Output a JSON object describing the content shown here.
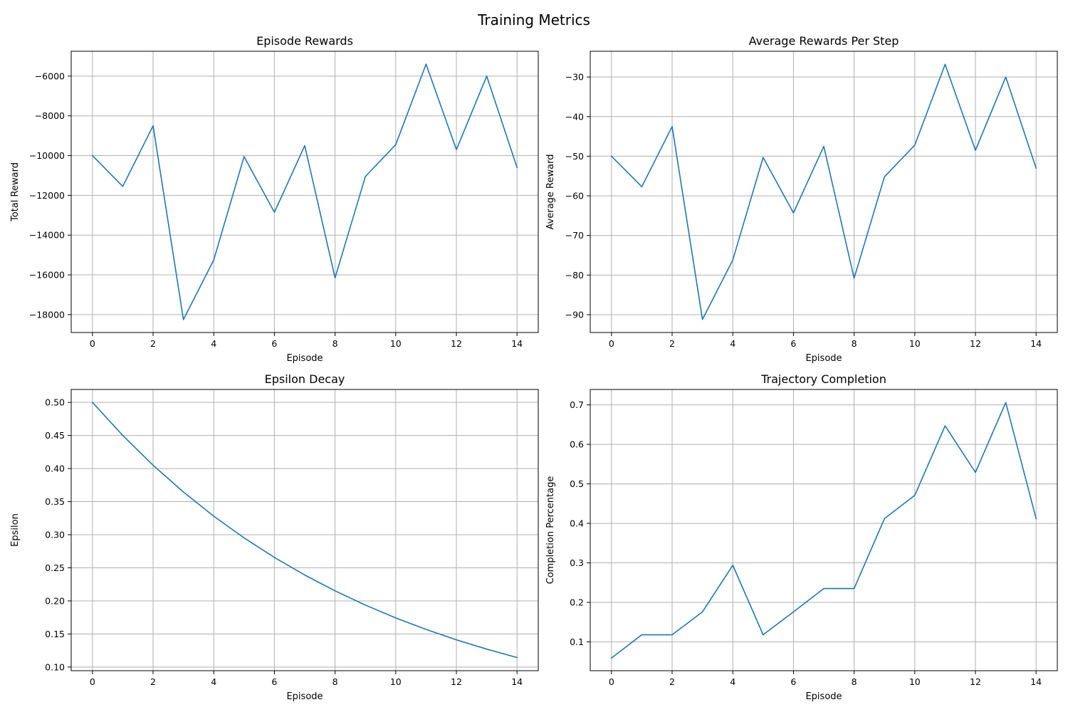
{
  "figure": {
    "title": "Training Metrics"
  },
  "colors": {
    "line": "#1f77b4",
    "grid": "#b0b0b0",
    "axis": "#000000"
  },
  "chart_data": [
    {
      "type": "line",
      "title": "Episode Rewards",
      "xlabel": "Episode",
      "ylabel": "Total Reward",
      "xlim": [
        -0.7,
        14.7
      ],
      "ylim": [
        -18900,
        -4750
      ],
      "xticks": [
        0,
        2,
        4,
        6,
        8,
        10,
        12,
        14
      ],
      "yticks": [
        -18000,
        -16000,
        -14000,
        -12000,
        -10000,
        -8000,
        -6000
      ],
      "grid": true,
      "x": [
        0,
        1,
        2,
        3,
        4,
        5,
        6,
        7,
        8,
        9,
        10,
        11,
        12,
        13,
        14
      ],
      "y": [
        -10000,
        -11550,
        -8500,
        -18250,
        -15250,
        -10050,
        -12850,
        -9500,
        -16150,
        -11050,
        -9450,
        -5400,
        -9700,
        -6000,
        -10600
      ]
    },
    {
      "type": "line",
      "title": "Average Rewards Per Step",
      "xlabel": "Episode",
      "ylabel": "Average Reward",
      "xlim": [
        -0.7,
        14.7
      ],
      "ylim": [
        -94.5,
        -23.5
      ],
      "xticks": [
        0,
        2,
        4,
        6,
        8,
        10,
        12,
        14
      ],
      "yticks": [
        -90,
        -80,
        -70,
        -60,
        -50,
        -40,
        -30
      ],
      "grid": true,
      "x": [
        0,
        1,
        2,
        3,
        4,
        5,
        6,
        7,
        8,
        9,
        10,
        11,
        12,
        13,
        14
      ],
      "y": [
        -50,
        -57.7,
        -42.5,
        -91.2,
        -76.2,
        -50.3,
        -64.3,
        -47.5,
        -80.8,
        -55.2,
        -47.2,
        -26.8,
        -48.5,
        -30,
        -53
      ]
    },
    {
      "type": "line",
      "title": "Epsilon Decay",
      "xlabel": "Episode",
      "ylabel": "Epsilon",
      "xlim": [
        -0.7,
        14.7
      ],
      "ylim": [
        0.0945,
        0.5195
      ],
      "xticks": [
        0,
        2,
        4,
        6,
        8,
        10,
        12,
        14
      ],
      "yticks": [
        0.1,
        0.15,
        0.2,
        0.25,
        0.3,
        0.35,
        0.4,
        0.45,
        0.5
      ],
      "ytick_labels": [
        "0.10",
        "0.15",
        "0.20",
        "0.25",
        "0.30",
        "0.35",
        "0.40",
        "0.45",
        "0.50"
      ],
      "grid": true,
      "x": [
        0,
        1,
        2,
        3,
        4,
        5,
        6,
        7,
        8,
        9,
        10,
        11,
        12,
        13,
        14
      ],
      "y": [
        0.5,
        0.45,
        0.405,
        0.3645,
        0.328,
        0.2952,
        0.2657,
        0.2391,
        0.2152,
        0.1937,
        0.1743,
        0.1569,
        0.1412,
        0.1271,
        0.1144
      ]
    },
    {
      "type": "line",
      "title": "Trajectory Completion",
      "xlabel": "Episode",
      "ylabel": "Completion Percentage",
      "xlim": [
        -0.7,
        14.7
      ],
      "ylim": [
        0.027,
        0.739
      ],
      "xticks": [
        0,
        2,
        4,
        6,
        8,
        10,
        12,
        14
      ],
      "yticks": [
        0.1,
        0.2,
        0.3,
        0.4,
        0.5,
        0.6,
        0.7
      ],
      "ytick_labels": [
        "0.1",
        "0.2",
        "0.3",
        "0.4",
        "0.5",
        "0.6",
        "0.7"
      ],
      "grid": true,
      "x": [
        0,
        1,
        2,
        3,
        4,
        5,
        6,
        7,
        8,
        9,
        10,
        11,
        12,
        13,
        14
      ],
      "y": [
        0.059,
        0.118,
        0.118,
        0.176,
        0.294,
        0.118,
        0.176,
        0.235,
        0.235,
        0.412,
        0.471,
        0.647,
        0.529,
        0.706,
        0.412
      ]
    }
  ]
}
